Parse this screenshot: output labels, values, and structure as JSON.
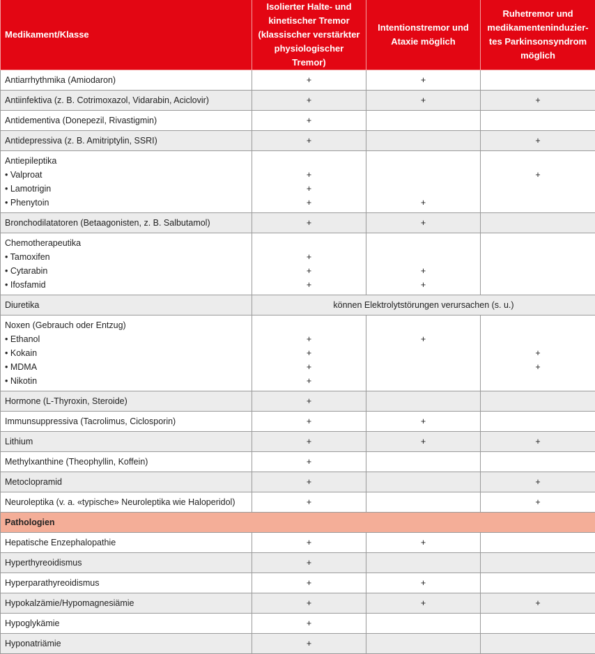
{
  "header": {
    "columns": [
      "Medikament/Klasse",
      "Isolierter Halte- und kinetischer Tremor (klassischer verstärkter physiologischer Tremor)",
      "Intentionstremor und Ataxie möglich",
      "Ruhetremor und medikamenteninduzier-tes Parkinsonsyndrom möglich"
    ]
  },
  "colors": {
    "header": "#e30613",
    "section": "#f4ae98",
    "shaded_row": "#ececec"
  },
  "medications": [
    {
      "label": "Antiarrhythmika (Amiodaron)",
      "marks": [
        "+",
        "+",
        ""
      ]
    },
    {
      "label": "Antiinfektiva (z. B. Cotrimoxazol, Vidarabin, Aciclovir)",
      "marks": [
        "+",
        "+",
        "+"
      ]
    },
    {
      "label": "Antidementiva (Donepezil, Rivastigmin)",
      "marks": [
        "+",
        "",
        ""
      ]
    },
    {
      "label": "Antidepressiva (z. B. Amitriptylin, SSRI)",
      "marks": [
        "+",
        "",
        "+"
      ]
    },
    {
      "label": "Antiepileptika",
      "items": [
        {
          "name": "Valproat",
          "marks": [
            "+",
            "",
            "+"
          ]
        },
        {
          "name": "Lamotrigin",
          "marks": [
            "+",
            "",
            ""
          ]
        },
        {
          "name": "Phenytoin",
          "marks": [
            "+",
            "+",
            ""
          ]
        }
      ]
    },
    {
      "label": "Bronchodilatatoren (Betaagonisten, z. B. Salbutamol)",
      "marks": [
        "+",
        "+",
        ""
      ]
    },
    {
      "label": "Chemotherapeutika",
      "items": [
        {
          "name": "Tamoxifen",
          "marks": [
            "+",
            "",
            ""
          ]
        },
        {
          "name": "Cytarabin",
          "marks": [
            "+",
            "+",
            ""
          ]
        },
        {
          "name": "Ifosfamid",
          "marks": [
            "+",
            "+",
            ""
          ]
        }
      ]
    },
    {
      "label": "Diuretika",
      "span_text": "können Elektrolytstörungen verursachen (s. u.)"
    },
    {
      "label": "Noxen (Gebrauch oder Entzug)",
      "items": [
        {
          "name": "Ethanol",
          "marks": [
            "+",
            "+",
            ""
          ]
        },
        {
          "name": "Kokain",
          "marks": [
            "+",
            "",
            "+"
          ]
        },
        {
          "name": "MDMA",
          "marks": [
            "+",
            "",
            "+"
          ]
        },
        {
          "name": "Nikotin",
          "marks": [
            "+",
            "",
            ""
          ]
        }
      ]
    },
    {
      "label": "Hormone (L-Thyroxin, Steroide)",
      "marks": [
        "+",
        "",
        ""
      ]
    },
    {
      "label": "Immunsuppressiva (Tacrolimus, Ciclosporin)",
      "marks": [
        "+",
        "+",
        ""
      ]
    },
    {
      "label": "Lithium",
      "marks": [
        "+",
        "+",
        "+"
      ]
    },
    {
      "label": "Methylxanthine (Theophyllin, Koffein)",
      "marks": [
        "+",
        "",
        ""
      ]
    },
    {
      "label": "Metoclopramid",
      "marks": [
        "+",
        "",
        "+"
      ]
    },
    {
      "label": "Neuroleptika (v. a. «typische» Neuroleptika wie Haloperidol)",
      "marks": [
        "+",
        "",
        "+"
      ]
    }
  ],
  "section_title": "Pathologien",
  "pathologies": [
    {
      "label": "Hepatische Enzephalopathie",
      "marks": [
        "+",
        "+",
        ""
      ]
    },
    {
      "label": "Hyperthyreoidismus",
      "marks": [
        "+",
        "",
        ""
      ]
    },
    {
      "label": "Hyperparathyreoidismus",
      "marks": [
        "+",
        "+",
        ""
      ]
    },
    {
      "label": "Hypokalzämie/Hypomagnesiämie",
      "marks": [
        "+",
        "+",
        "+"
      ]
    },
    {
      "label": "Hypoglykämie",
      "marks": [
        "+",
        "",
        ""
      ]
    },
    {
      "label": "Hyponatriämie",
      "marks": [
        "+",
        "",
        ""
      ]
    }
  ]
}
